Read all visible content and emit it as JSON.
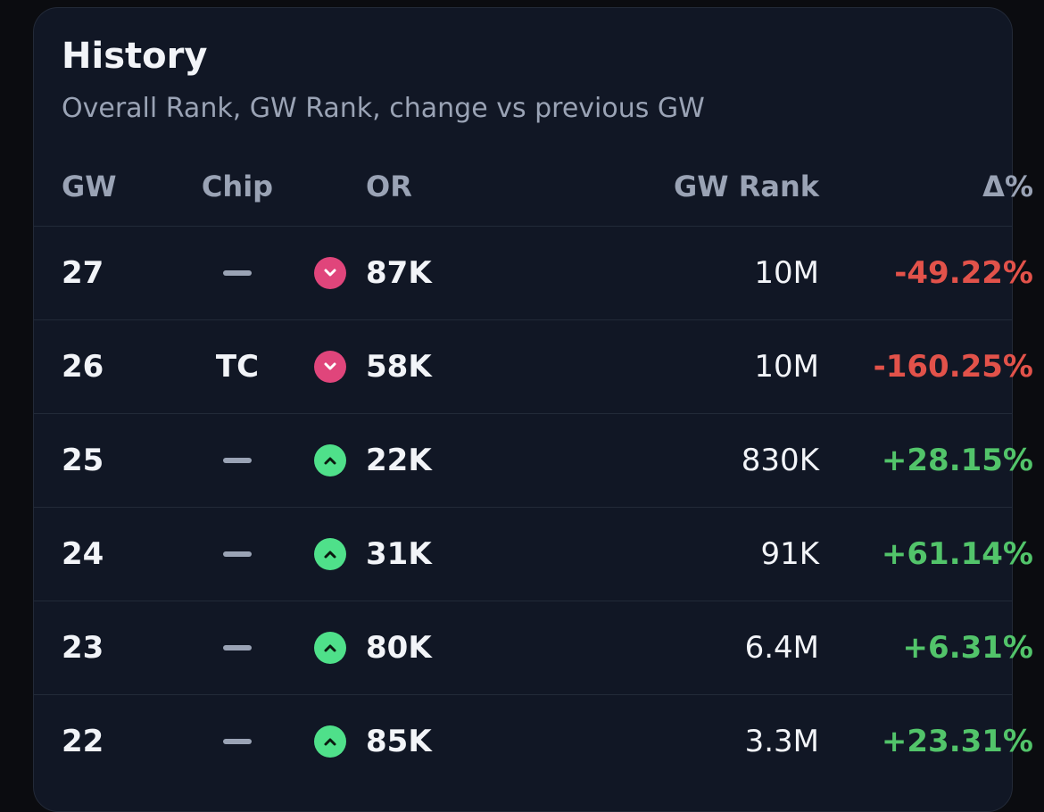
{
  "card": {
    "title": "History",
    "subtitle": "Overall Rank, GW Rank, change vs previous GW"
  },
  "table": {
    "headers": {
      "gw": "GW",
      "chip": "Chip",
      "or": "OR",
      "gw_rank": "GW Rank",
      "delta": "Δ%"
    },
    "rows": [
      {
        "gw": "27",
        "chip": "",
        "trend": "down",
        "or": "87K",
        "gw_rank": "10M",
        "delta": "-49.22%"
      },
      {
        "gw": "26",
        "chip": "TC",
        "trend": "down",
        "or": "58K",
        "gw_rank": "10M",
        "delta": "-160.25%"
      },
      {
        "gw": "25",
        "chip": "",
        "trend": "up",
        "or": "22K",
        "gw_rank": "830K",
        "delta": "+28.15%"
      },
      {
        "gw": "24",
        "chip": "",
        "trend": "up",
        "or": "31K",
        "gw_rank": "91K",
        "delta": "+61.14%"
      },
      {
        "gw": "23",
        "chip": "",
        "trend": "up",
        "or": "80K",
        "gw_rank": "6.4M",
        "delta": "+6.31%"
      },
      {
        "gw": "22",
        "chip": "",
        "trend": "up",
        "or": "85K",
        "gw_rank": "3.3M",
        "delta": "+23.31%"
      }
    ]
  },
  "colors": {
    "background": "#0b0c10",
    "card": "#111725",
    "negative": "#e2524a",
    "positive": "#52c46a",
    "down_icon": "#e0457b",
    "up_icon": "#4fe08a"
  }
}
